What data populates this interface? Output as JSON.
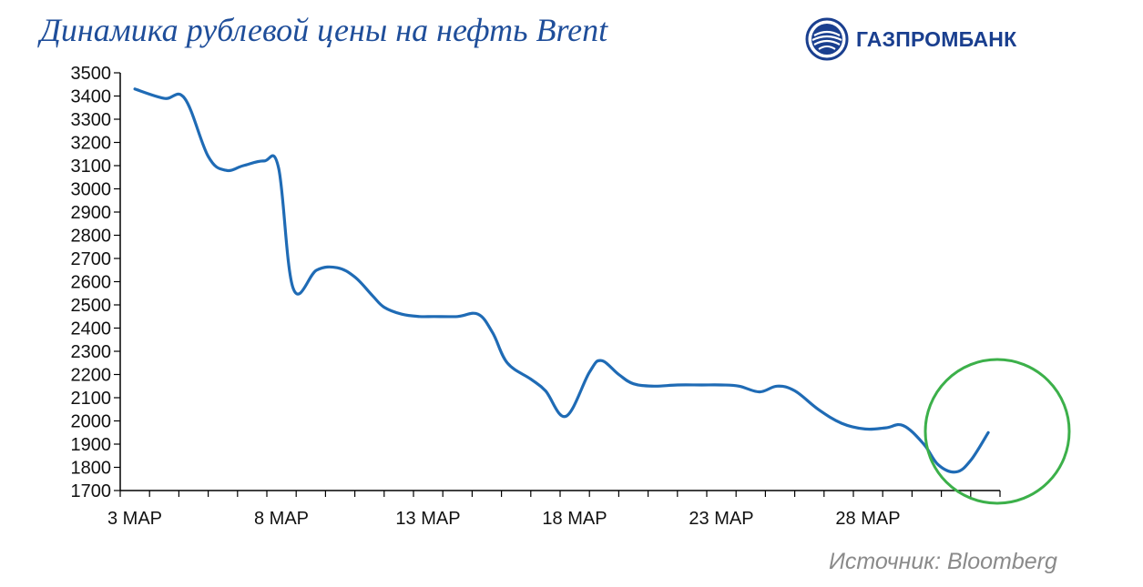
{
  "header": {
    "title": "Динамика рублевой цены на нефть Brent",
    "brand": "ГАЗПРОМБАНК",
    "logo_icon": "gazprombank-globe-icon"
  },
  "footer": {
    "source": "Источник: Bloomberg"
  },
  "colors": {
    "title": "#1f4e9a",
    "line": "#1f6bb5",
    "highlight_circle": "#3cb04a",
    "axis": "#000000",
    "source": "#8a8a8a"
  },
  "chart_data": {
    "type": "line",
    "title": "Динамика рублевой цены на нефть Brent",
    "xlabel": "",
    "ylabel": "",
    "ylim": [
      1700,
      3500
    ],
    "yticks": [
      1700,
      1800,
      1900,
      2000,
      2100,
      2200,
      2300,
      2400,
      2500,
      2600,
      2700,
      2800,
      2900,
      3000,
      3100,
      3200,
      3300,
      3400,
      3500
    ],
    "xtick_labels": [
      "3 МАР",
      "8 МАР",
      "13 МАР",
      "18 МАР",
      "23 МАР",
      "28 МАР"
    ],
    "xtick_days": [
      3,
      8,
      13,
      18,
      23,
      28
    ],
    "xlim_days": [
      3,
      33
    ],
    "grid": false,
    "legend": "none",
    "series": [
      {
        "x_days": [
          3.5,
          4.5,
          5.2,
          6.0,
          6.6,
          7.2,
          7.9,
          8.4,
          8.9,
          9.7,
          10.4,
          11.0,
          11.6,
          12.0,
          12.6,
          13.2,
          13.7,
          14.5,
          15.2,
          15.7,
          16.2,
          17.0,
          17.5,
          18.2,
          19.0,
          19.4,
          20.0,
          20.5,
          21.2,
          22.0,
          22.8,
          23.5,
          24.1,
          24.8,
          25.4,
          26.0,
          26.8,
          27.6,
          28.4,
          29.1,
          29.7,
          30.4,
          30.9,
          31.5,
          32.0,
          32.6
        ],
        "values": [
          3430,
          3390,
          3390,
          3140,
          3080,
          3100,
          3120,
          3090,
          2570,
          2650,
          2660,
          2620,
          2540,
          2490,
          2460,
          2450,
          2450,
          2450,
          2460,
          2380,
          2250,
          2180,
          2130,
          2020,
          2210,
          2260,
          2200,
          2160,
          2150,
          2155,
          2155,
          2155,
          2150,
          2125,
          2150,
          2130,
          2050,
          1990,
          1965,
          1970,
          1980,
          1900,
          1810,
          1780,
          1830,
          1950
        ]
      }
    ]
  }
}
